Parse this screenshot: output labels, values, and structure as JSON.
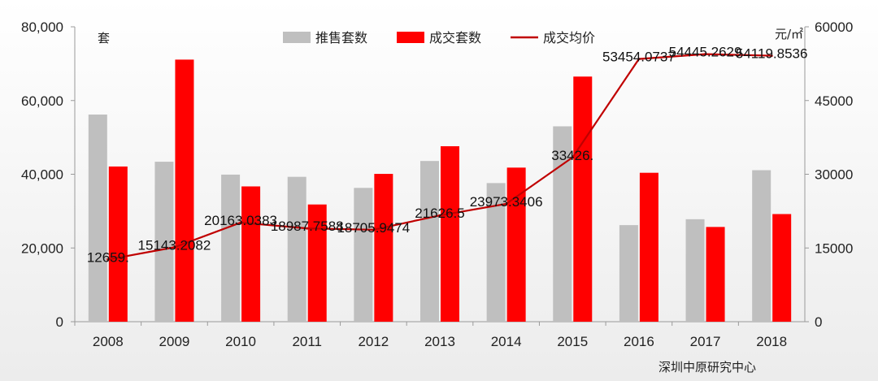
{
  "chart_data": {
    "type": "bar",
    "categories": [
      "2008",
      "2009",
      "2010",
      "2011",
      "2012",
      "2013",
      "2014",
      "2015",
      "2016",
      "2017",
      "2018"
    ],
    "series": [
      {
        "name": "推售套数",
        "kind": "bar",
        "axis": "left",
        "color": "#bfbfbf",
        "values": [
          56200,
          43400,
          39900,
          39300,
          36300,
          43600,
          37600,
          53000,
          26200,
          27800,
          41100
        ]
      },
      {
        "name": "成交套数",
        "kind": "bar",
        "axis": "left",
        "color": "#ff0000",
        "values": [
          42100,
          71100,
          36700,
          31800,
          40100,
          47600,
          41800,
          66500,
          40400,
          25700,
          29200
        ]
      },
      {
        "name": "成交均价",
        "kind": "line",
        "axis": "right",
        "color": "#c00000",
        "values": [
          12659,
          15143.2082,
          20163.0383,
          18987.7588,
          18705.9474,
          21626.5,
          23973.3406,
          33426,
          53454.0737,
          54445.2629,
          54119.8536
        ],
        "labels": [
          "12659.",
          "15143.2082",
          "20163.0383",
          "18987.7588",
          "18705.9474",
          "21626.5",
          "23973.3406",
          "33426.",
          "53454.0737",
          "54445.2629",
          "54119.8536"
        ]
      }
    ],
    "y_left": {
      "ylim": [
        0,
        80000
      ],
      "ticks": [
        "0",
        "20,000",
        "40,000",
        "60,000",
        "80,000"
      ],
      "unit": "套"
    },
    "y_right": {
      "ylim": [
        0,
        60000
      ],
      "ticks": [
        "0",
        "15000",
        "30000",
        "45000",
        "60000"
      ],
      "unit": "元/㎡"
    },
    "legend": {
      "position": "top-center"
    },
    "source": "深圳中原研究中心",
    "grid": false
  }
}
